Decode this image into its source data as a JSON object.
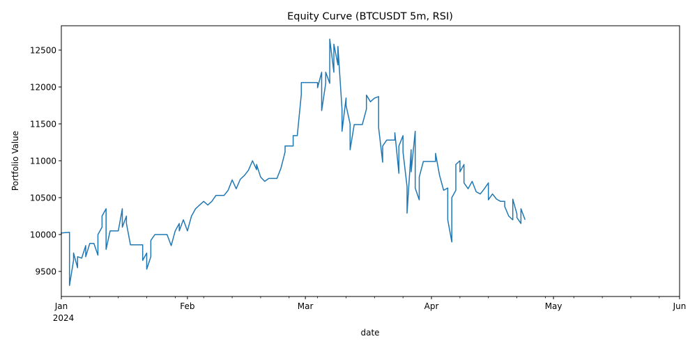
{
  "chart_data": {
    "type": "line",
    "title": "Equity Curve (BTCUSDT 5m, RSI)",
    "xlabel": "date",
    "ylabel": "Portfolio Value",
    "xlim": [
      "2024-01-01",
      "2024-06-01"
    ],
    "ylim": [
      9160,
      12830
    ],
    "grid": false,
    "y_ticks": [
      9500,
      10000,
      10500,
      11000,
      11500,
      12000,
      12500
    ],
    "x_major_ticks": [
      {
        "date": "2024-01-01",
        "label": "Jan",
        "sublabel": "2024"
      },
      {
        "date": "2024-02-01",
        "label": "Feb",
        "sublabel": ""
      },
      {
        "date": "2024-03-01",
        "label": "Mar",
        "sublabel": ""
      },
      {
        "date": "2024-04-01",
        "label": "Apr",
        "sublabel": ""
      },
      {
        "date": "2024-05-01",
        "label": "May",
        "sublabel": ""
      },
      {
        "date": "2024-06-01",
        "label": "Jun",
        "sublabel": ""
      }
    ],
    "x_minor_ticks": [
      "2024-01-08",
      "2024-01-15",
      "2024-01-22",
      "2024-01-29",
      "2024-02-05",
      "2024-02-12",
      "2024-02-19",
      "2024-02-26",
      "2024-03-04",
      "2024-03-11",
      "2024-03-18",
      "2024-03-25",
      "2024-04-08",
      "2024-04-15",
      "2024-04-22",
      "2024-04-29",
      "2024-05-06",
      "2024-05-13",
      "2024-05-20",
      "2024-05-27"
    ],
    "line_color": "#1f77b4",
    "series": [
      {
        "points": [
          [
            "2024-01-01",
            10000
          ],
          [
            "2024-01-01",
            10020
          ],
          [
            "2024-01-03",
            10030
          ],
          [
            "2024-01-03",
            9310
          ],
          [
            "2024-01-04",
            9650
          ],
          [
            "2024-01-04",
            9750
          ],
          [
            "2024-01-05",
            9550
          ],
          [
            "2024-01-05",
            9700
          ],
          [
            "2024-01-06",
            9680
          ],
          [
            "2024-01-07",
            9850
          ],
          [
            "2024-01-07",
            9700
          ],
          [
            "2024-01-08",
            9880
          ],
          [
            "2024-01-09",
            9880
          ],
          [
            "2024-01-10",
            9720
          ],
          [
            "2024-01-10",
            10000
          ],
          [
            "2024-01-11",
            10100
          ],
          [
            "2024-01-11",
            10250
          ],
          [
            "2024-01-12",
            10350
          ],
          [
            "2024-01-12",
            9800
          ],
          [
            "2024-01-13",
            10050
          ],
          [
            "2024-01-15",
            10050
          ],
          [
            "2024-01-16",
            10350
          ],
          [
            "2024-01-16",
            10100
          ],
          [
            "2024-01-17",
            10250
          ],
          [
            "2024-01-17",
            10150
          ],
          [
            "2024-01-18",
            9860
          ],
          [
            "2024-01-20",
            9860
          ],
          [
            "2024-01-21",
            9860
          ],
          [
            "2024-01-21",
            9650
          ],
          [
            "2024-01-22",
            9750
          ],
          [
            "2024-01-22",
            9530
          ],
          [
            "2024-01-23",
            9700
          ],
          [
            "2024-01-23",
            9920
          ],
          [
            "2024-01-24",
            10000
          ],
          [
            "2024-01-27",
            10000
          ],
          [
            "2024-01-28",
            9850
          ],
          [
            "2024-01-29",
            10050
          ],
          [
            "2024-01-30",
            10150
          ],
          [
            "2024-01-30",
            10050
          ],
          [
            "2024-01-31",
            10200
          ],
          [
            "2024-02-01",
            10050
          ],
          [
            "2024-02-02",
            10250
          ],
          [
            "2024-02-03",
            10350
          ],
          [
            "2024-02-04",
            10400
          ],
          [
            "2024-02-05",
            10450
          ],
          [
            "2024-02-06",
            10400
          ],
          [
            "2024-02-07",
            10450
          ],
          [
            "2024-02-08",
            10530
          ],
          [
            "2024-02-10",
            10530
          ],
          [
            "2024-02-11",
            10600
          ],
          [
            "2024-02-12",
            10740
          ],
          [
            "2024-02-13",
            10620
          ],
          [
            "2024-02-14",
            10750
          ],
          [
            "2024-02-15",
            10800
          ],
          [
            "2024-02-16",
            10870
          ],
          [
            "2024-02-17",
            11000
          ],
          [
            "2024-02-18",
            10880
          ],
          [
            "2024-02-18",
            10950
          ],
          [
            "2024-02-19",
            10780
          ],
          [
            "2024-02-20",
            10720
          ],
          [
            "2024-02-21",
            10760
          ],
          [
            "2024-02-23",
            10760
          ],
          [
            "2024-02-24",
            10900
          ],
          [
            "2024-02-25",
            11120
          ],
          [
            "2024-02-25",
            11200
          ],
          [
            "2024-02-27",
            11200
          ],
          [
            "2024-02-27",
            11340
          ],
          [
            "2024-02-28",
            11340
          ],
          [
            "2024-02-29",
            11900
          ],
          [
            "2024-02-29",
            12060
          ],
          [
            "2024-03-04",
            12060
          ],
          [
            "2024-03-04",
            11990
          ],
          [
            "2024-03-05",
            12200
          ],
          [
            "2024-03-05",
            11680
          ],
          [
            "2024-03-06",
            12050
          ],
          [
            "2024-03-06",
            12200
          ],
          [
            "2024-03-07",
            12050
          ],
          [
            "2024-03-07",
            12650
          ],
          [
            "2024-03-08",
            12200
          ],
          [
            "2024-03-08",
            12580
          ],
          [
            "2024-03-09",
            12300
          ],
          [
            "2024-03-09",
            12550
          ],
          [
            "2024-03-10",
            11700
          ],
          [
            "2024-03-10",
            11400
          ],
          [
            "2024-03-11",
            11850
          ],
          [
            "2024-03-11",
            11750
          ],
          [
            "2024-03-12",
            11500
          ],
          [
            "2024-03-12",
            11150
          ],
          [
            "2024-03-13",
            11490
          ],
          [
            "2024-03-15",
            11490
          ],
          [
            "2024-03-16",
            11700
          ],
          [
            "2024-03-16",
            11890
          ],
          [
            "2024-03-17",
            11800
          ],
          [
            "2024-03-18",
            11850
          ],
          [
            "2024-03-19",
            11870
          ],
          [
            "2024-03-19",
            11450
          ],
          [
            "2024-03-20",
            10980
          ],
          [
            "2024-03-20",
            11200
          ],
          [
            "2024-03-21",
            11280
          ],
          [
            "2024-03-23",
            11280
          ],
          [
            "2024-03-23",
            11380
          ],
          [
            "2024-03-24",
            10830
          ],
          [
            "2024-03-24",
            11200
          ],
          [
            "2024-03-25",
            11340
          ],
          [
            "2024-03-25",
            11120
          ],
          [
            "2024-03-26",
            10650
          ],
          [
            "2024-03-26",
            10290
          ],
          [
            "2024-03-27",
            11150
          ],
          [
            "2024-03-27",
            10850
          ],
          [
            "2024-03-28",
            11400
          ],
          [
            "2024-03-28",
            10630
          ],
          [
            "2024-03-29",
            10470
          ],
          [
            "2024-03-29",
            10780
          ],
          [
            "2024-03-30",
            10990
          ],
          [
            "2024-04-02",
            10990
          ],
          [
            "2024-04-02",
            11100
          ],
          [
            "2024-04-03",
            10800
          ],
          [
            "2024-04-04",
            10600
          ],
          [
            "2024-04-05",
            10630
          ],
          [
            "2024-04-05",
            10200
          ],
          [
            "2024-04-06",
            9900
          ],
          [
            "2024-04-06",
            10500
          ],
          [
            "2024-04-07",
            10600
          ],
          [
            "2024-04-07",
            10950
          ],
          [
            "2024-04-08",
            11000
          ],
          [
            "2024-04-08",
            10850
          ],
          [
            "2024-04-09",
            10950
          ],
          [
            "2024-04-09",
            10700
          ],
          [
            "2024-04-10",
            10620
          ],
          [
            "2024-04-11",
            10720
          ],
          [
            "2024-04-12",
            10580
          ],
          [
            "2024-04-13",
            10550
          ],
          [
            "2024-04-14",
            10620
          ],
          [
            "2024-04-15",
            10700
          ],
          [
            "2024-04-15",
            10470
          ],
          [
            "2024-04-16",
            10550
          ],
          [
            "2024-04-17",
            10480
          ],
          [
            "2024-04-18",
            10450
          ],
          [
            "2024-04-19",
            10450
          ],
          [
            "2024-04-19",
            10380
          ],
          [
            "2024-04-20",
            10250
          ],
          [
            "2024-04-21",
            10200
          ],
          [
            "2024-04-21",
            10480
          ],
          [
            "2024-04-22",
            10280
          ],
          [
            "2024-04-22",
            10230
          ],
          [
            "2024-04-23",
            10150
          ],
          [
            "2024-04-23",
            10350
          ],
          [
            "2024-04-24",
            10200
          ]
        ]
      }
    ]
  }
}
